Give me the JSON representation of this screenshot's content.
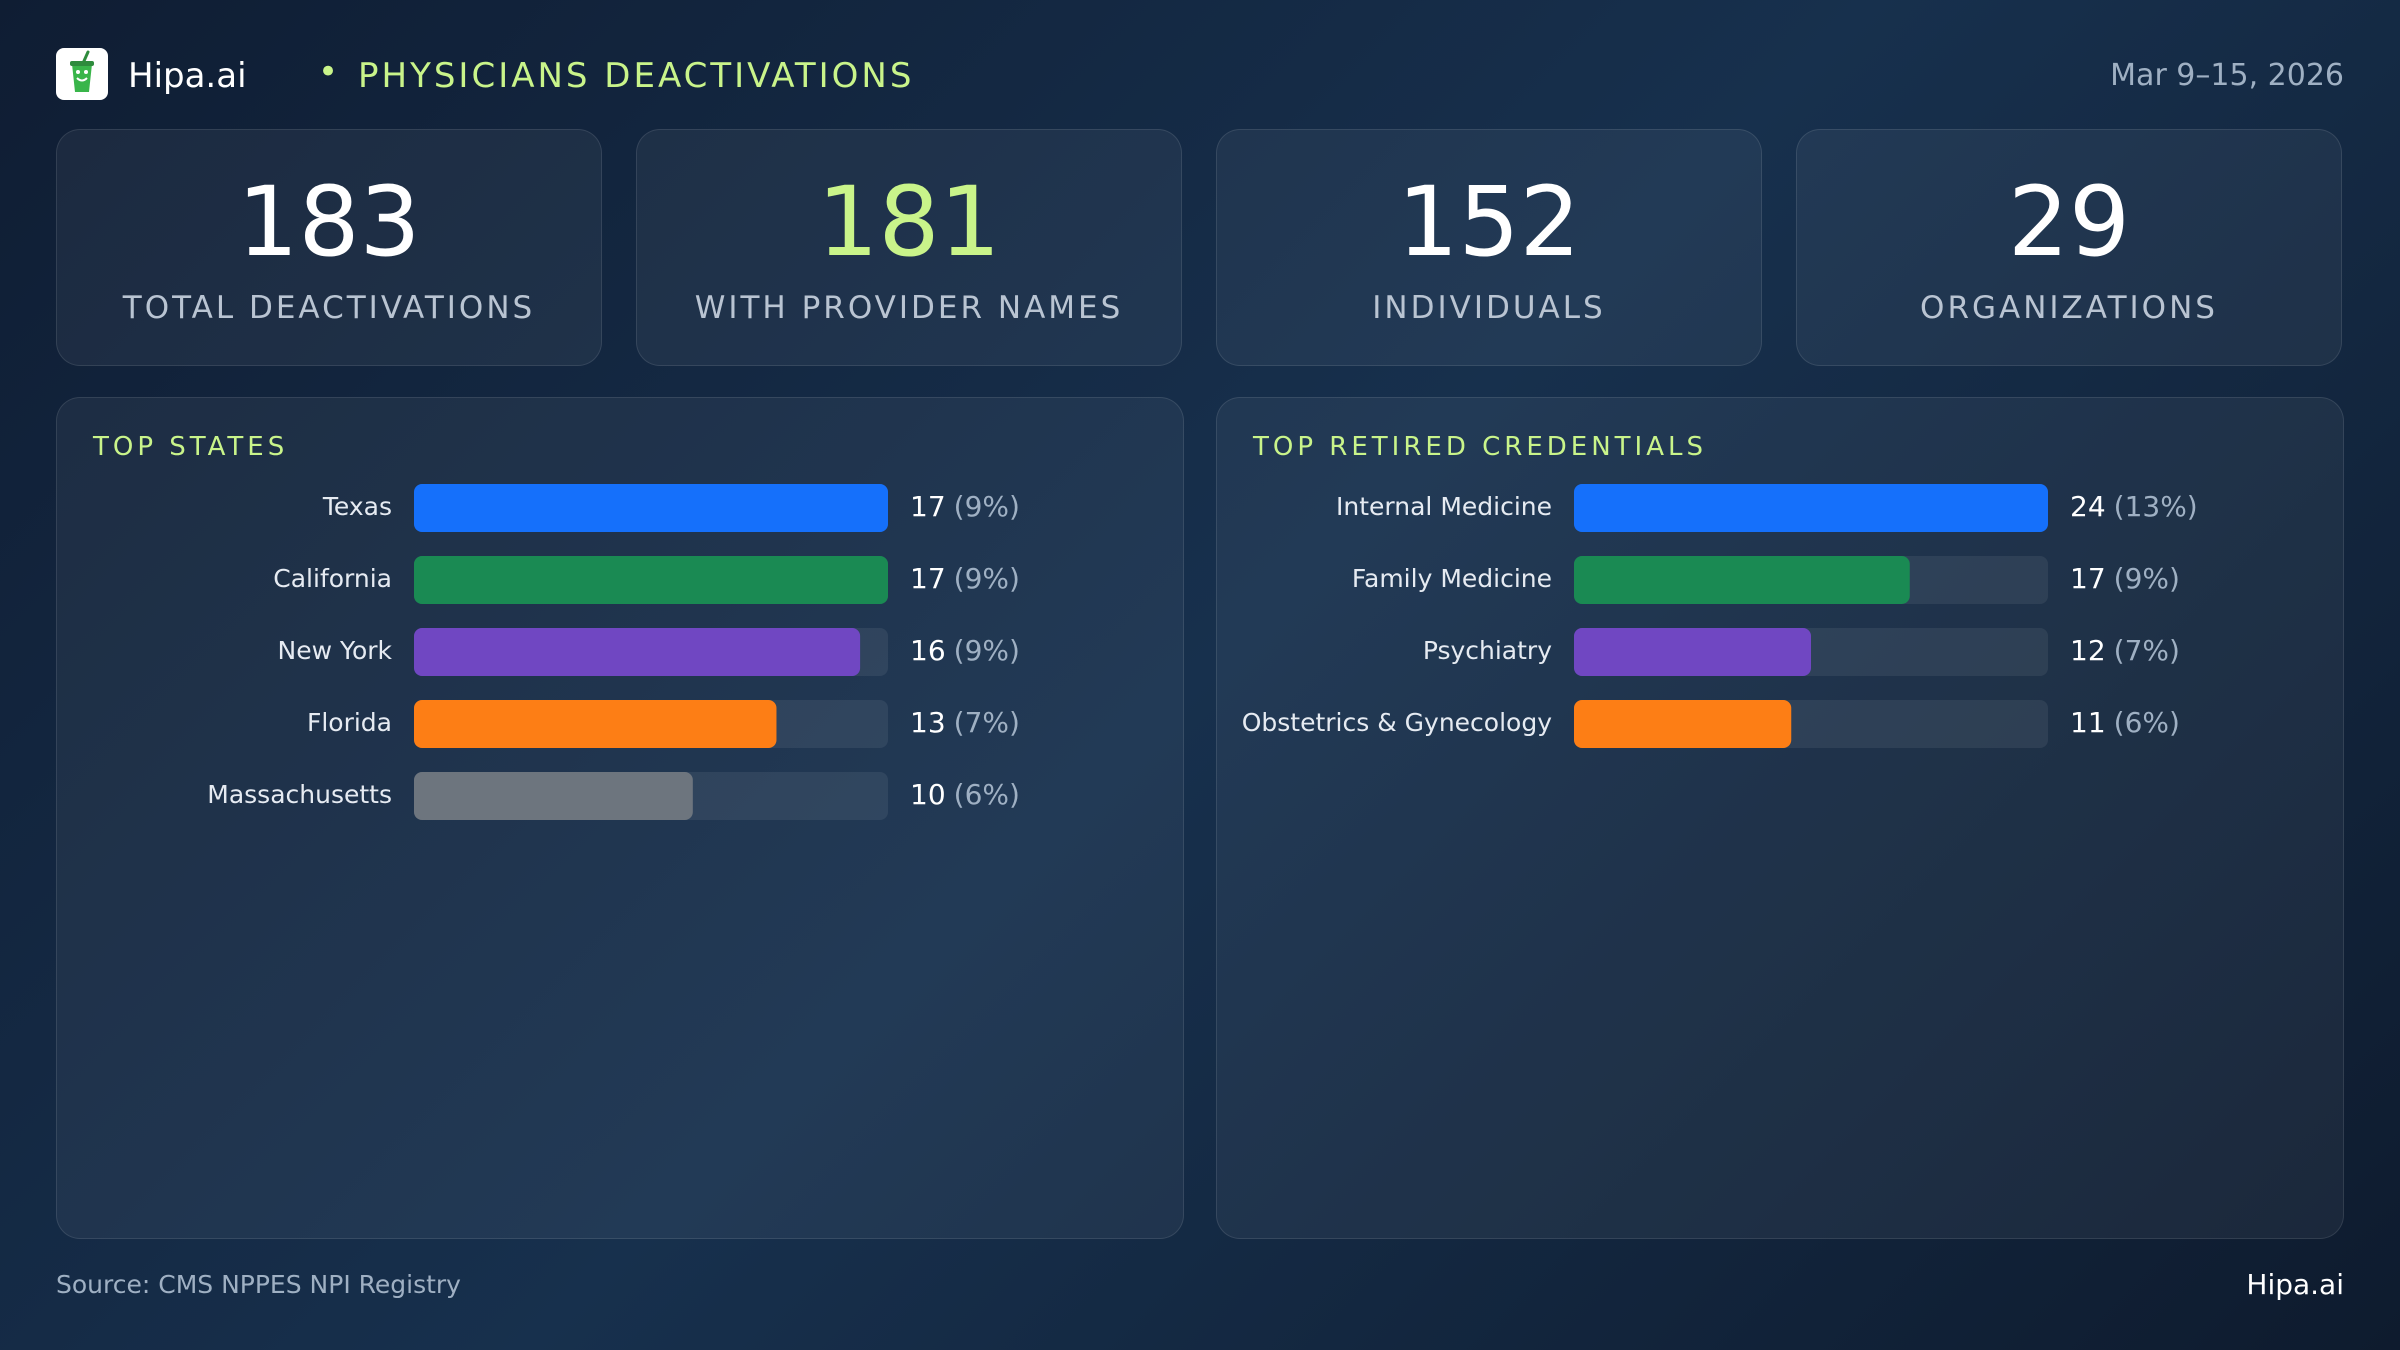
{
  "header": {
    "brand": "Hipa.ai",
    "separator": "•",
    "title": "PHYSICIANS DEACTIVATIONS",
    "date_range": "Mar 9–15, 2026",
    "logo_icon": "green-drink-cup-icon"
  },
  "kpis": [
    {
      "value": "183",
      "label": "TOTAL DEACTIVATIONS",
      "color": "#ffffff"
    },
    {
      "value": "181",
      "label": "WITH PROVIDER NAMES",
      "color": "#c9f48a"
    },
    {
      "value": "152",
      "label": "INDIVIDUALS",
      "color": "#ffffff"
    },
    {
      "value": "29",
      "label": "ORGANIZATIONS",
      "color": "#ffffff"
    }
  ],
  "chart_data": [
    {
      "type": "bar",
      "orientation": "horizontal",
      "title": "TOP STATES",
      "categories": [
        "Texas",
        "California",
        "New York",
        "Florida",
        "Massachusetts"
      ],
      "values": [
        17,
        17,
        16,
        13,
        10
      ],
      "pct_labels": [
        "(9%)",
        "(9%)",
        "(9%)",
        "(7%)",
        "(6%)"
      ],
      "colors": [
        "#1570fb",
        "#1a8a53",
        "#7047c2",
        "#fd7e15",
        "#6d757e"
      ],
      "xlim": [
        0,
        17
      ],
      "grid": false
    },
    {
      "type": "bar",
      "orientation": "horizontal",
      "title": "TOP RETIRED CREDENTIALS",
      "categories": [
        "Internal Medicine",
        "Family Medicine",
        "Psychiatry",
        "Obstetrics & Gynecology"
      ],
      "values": [
        24,
        17,
        12,
        11
      ],
      "pct_labels": [
        "(13%)",
        "(9%)",
        "(7%)",
        "(6%)"
      ],
      "colors": [
        "#1570fb",
        "#1a8a53",
        "#7047c2",
        "#fd7e15"
      ],
      "xlim": [
        0,
        24
      ],
      "grid": false
    }
  ],
  "footer": {
    "source": "Source: CMS NPPES NPI Registry",
    "brand": "Hipa.ai"
  }
}
